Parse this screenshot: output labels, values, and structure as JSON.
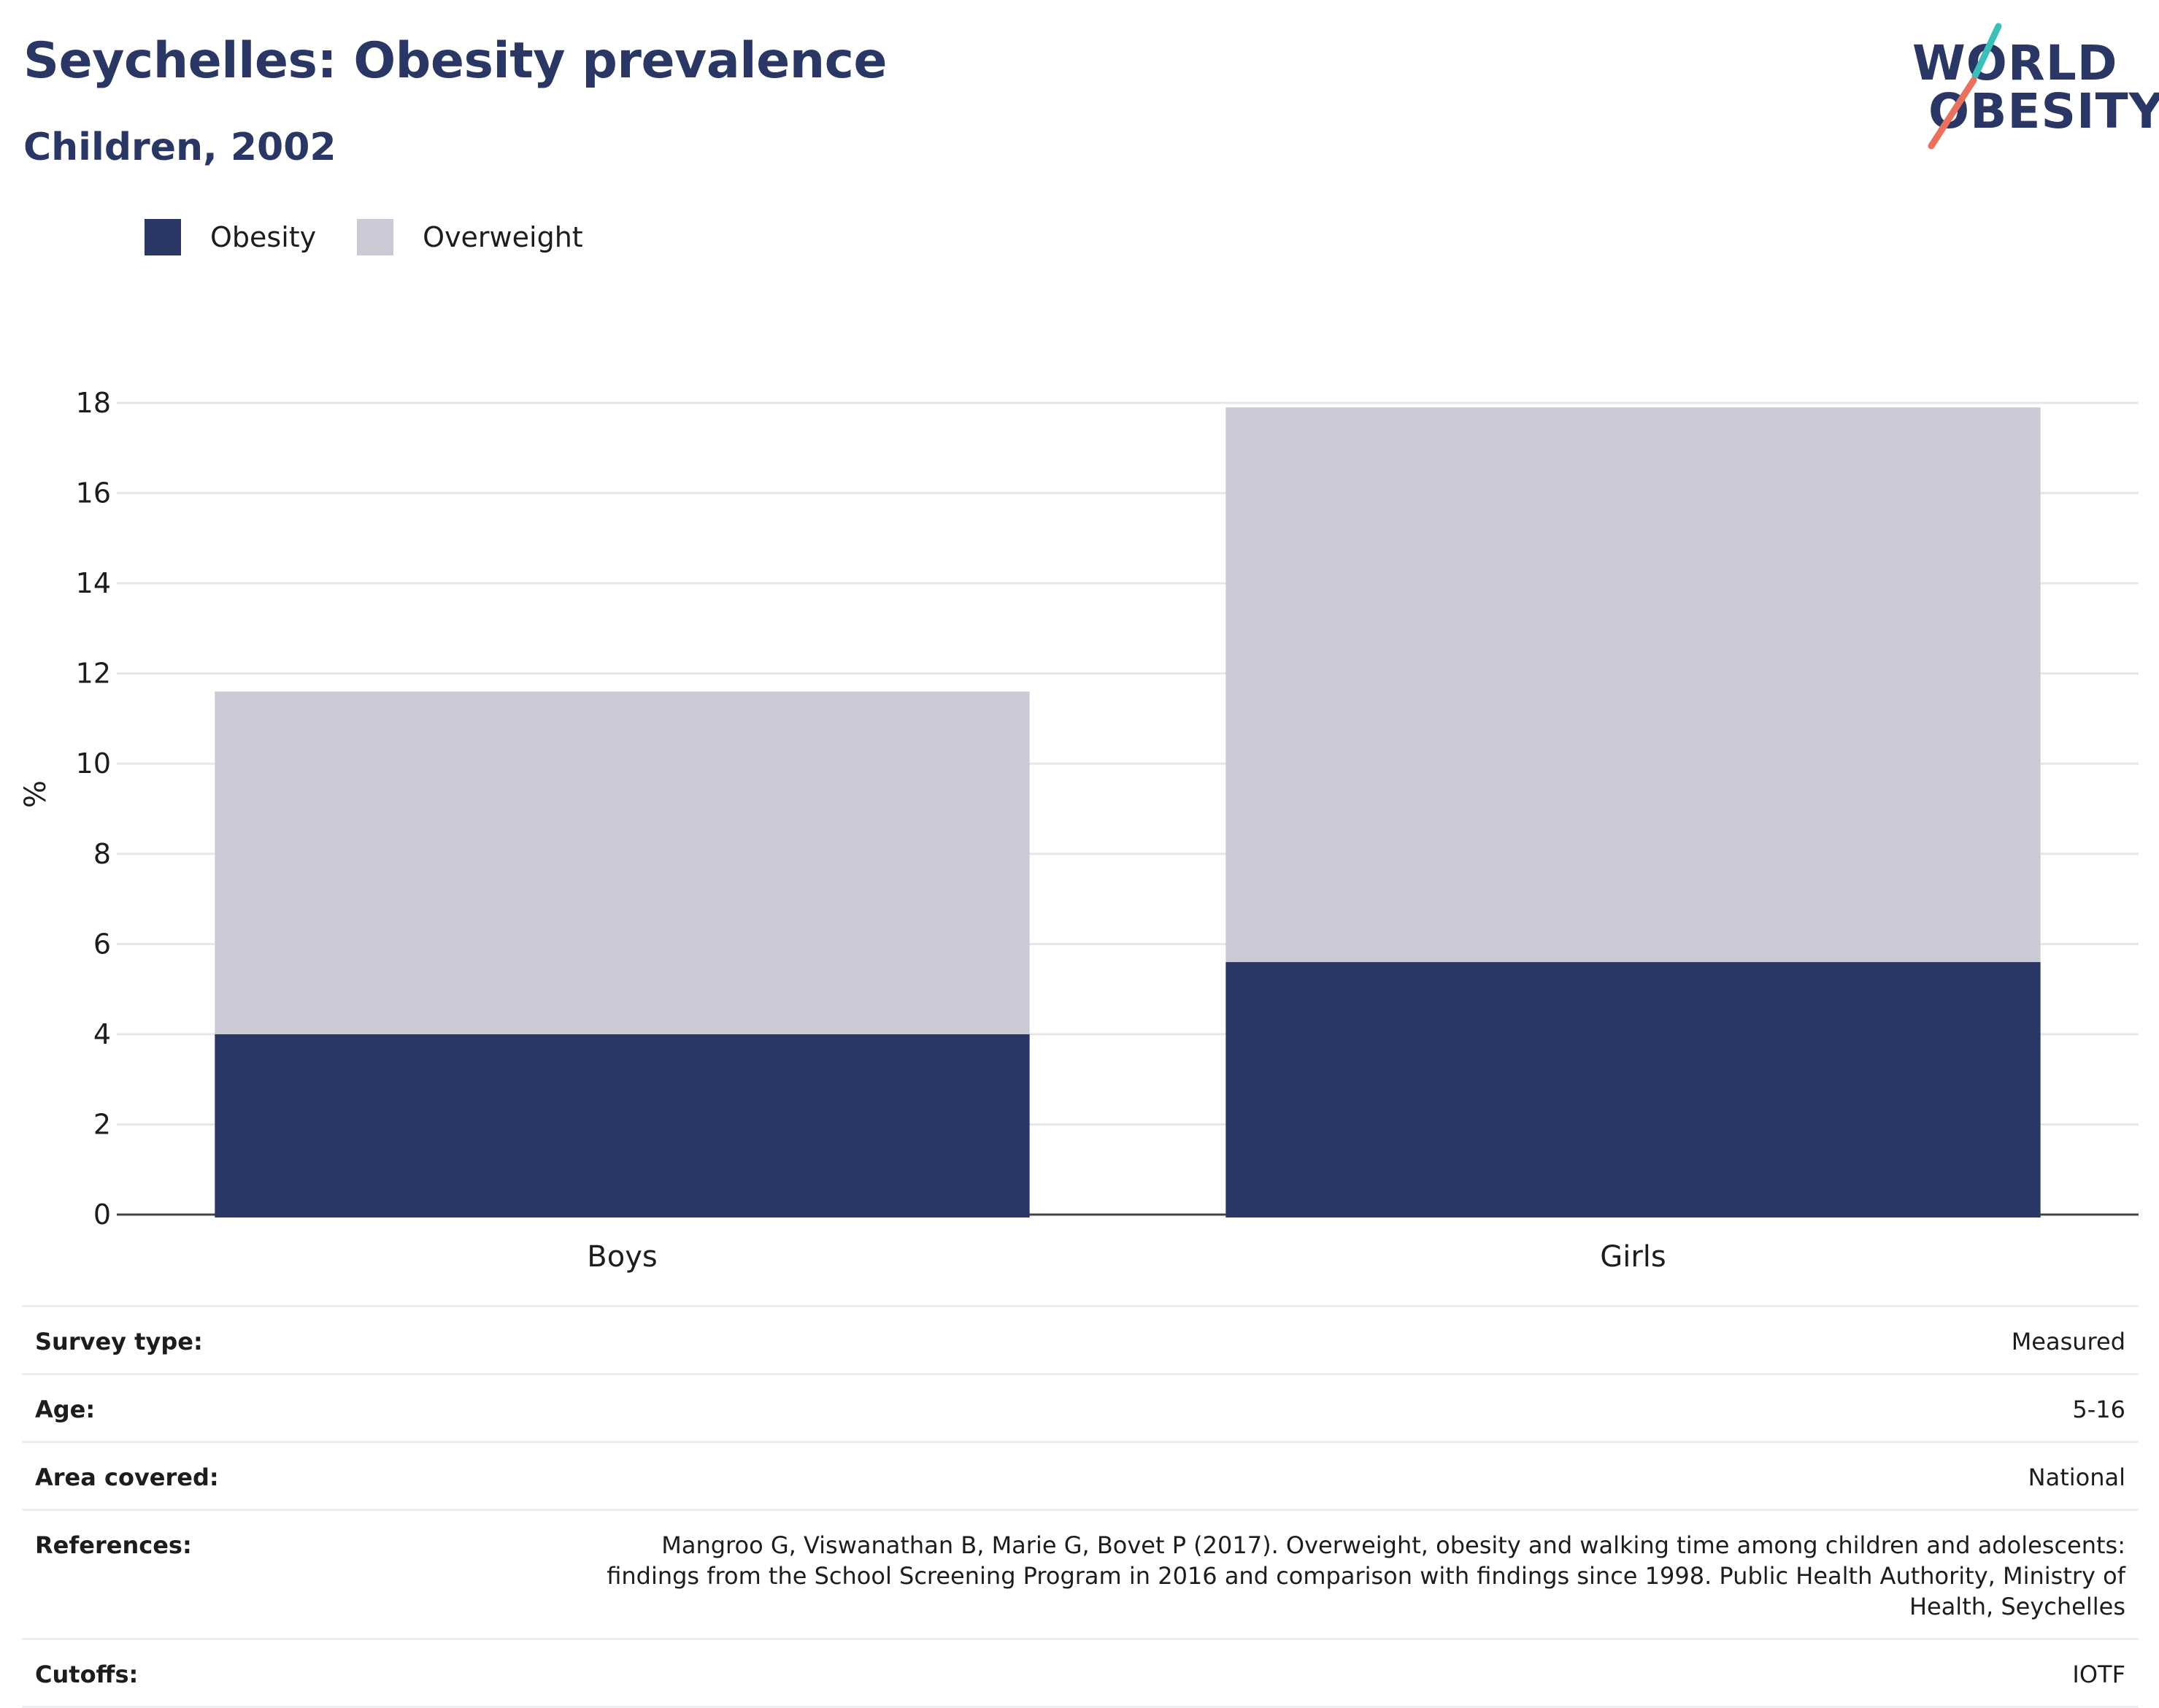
{
  "header": {
    "title": "Seychelles: Obesity prevalence",
    "subtitle": "Children, 2002"
  },
  "logo": {
    "line1": "WORLD",
    "line2": "OBESITY",
    "colors": {
      "text": "#2a3764",
      "slash_top": "#3bbfb8",
      "slash_bottom": "#e8725e"
    }
  },
  "legend": [
    {
      "label": "Obesity",
      "color": "#2a3764"
    },
    {
      "label": "Overweight",
      "color": "#cacbd6"
    }
  ],
  "chart_data": {
    "type": "bar",
    "stacked": true,
    "categories": [
      "Boys",
      "Girls"
    ],
    "series": [
      {
        "name": "Obesity",
        "values": [
          4.0,
          5.6
        ],
        "color": "#2a3764"
      },
      {
        "name": "Overweight",
        "values": [
          7.6,
          12.3
        ],
        "color": "#cacbd6"
      }
    ],
    "totals": [
      11.6,
      17.9
    ],
    "ylabel": "%",
    "xlabel": "",
    "ylim": [
      0,
      18
    ],
    "yticks": [
      0,
      2,
      4,
      6,
      8,
      10,
      12,
      14,
      16,
      18
    ],
    "grid": true,
    "legend_position": "top-left"
  },
  "meta": [
    {
      "label": "Survey type:",
      "value": "Measured"
    },
    {
      "label": "Age:",
      "value": "5-16"
    },
    {
      "label": "Area covered:",
      "value": "National"
    },
    {
      "label": "References:",
      "value": "Mangroo G, Viswanathan B, Marie G, Bovet P (2017). Overweight, obesity and walking time among children and adolescents: findings from the School Screening Program in 2016 and comparison with findings since 1998. Public Health Authority, Ministry of Health, Seychelles"
    },
    {
      "label": "Cutoffs:",
      "value": "IOTF"
    }
  ]
}
